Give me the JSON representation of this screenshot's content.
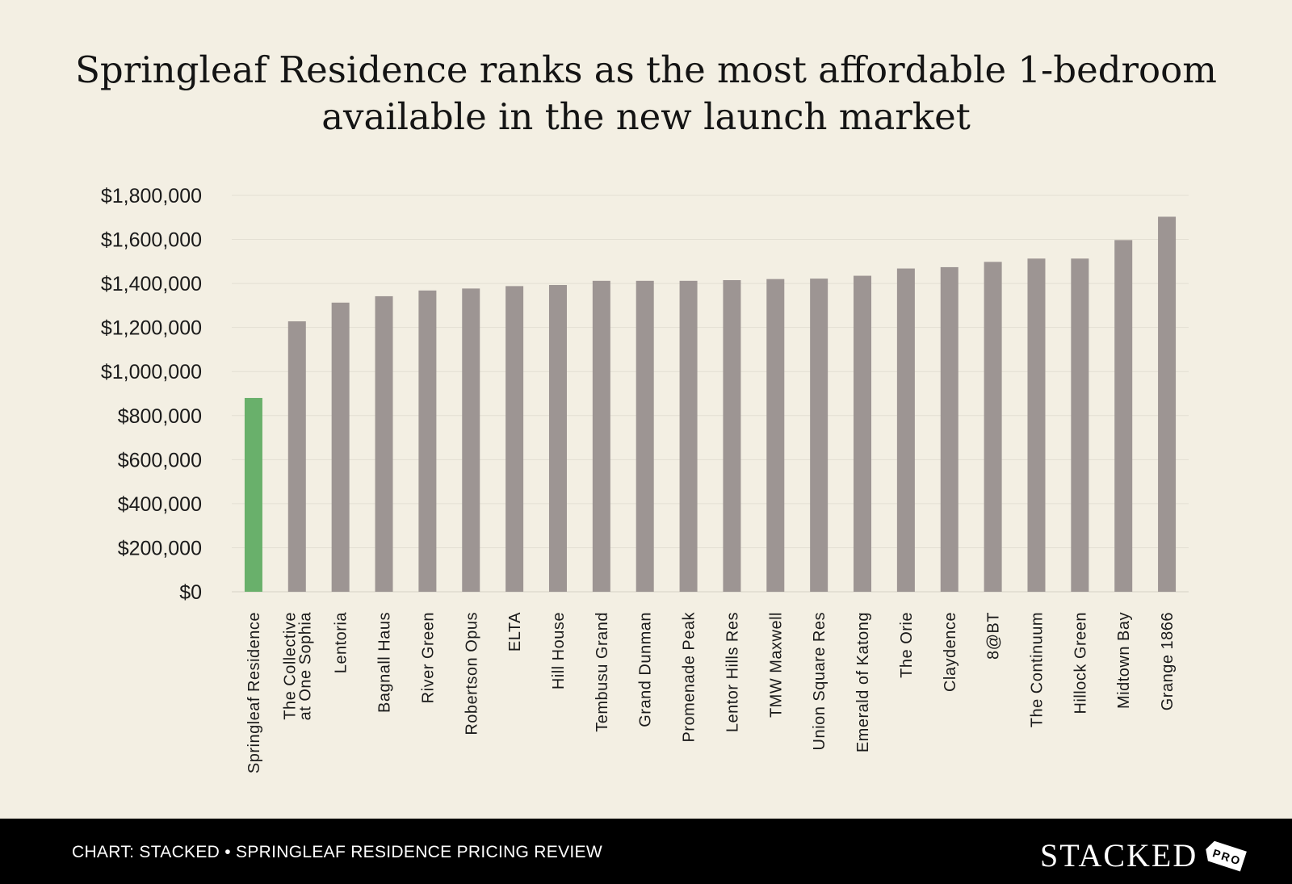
{
  "title": {
    "line1": "Springleaf Residence ranks as the most affordable 1-bedroom",
    "line2": "available in the new launch market"
  },
  "footer": {
    "credit": "CHART: STACKED • SPRINGLEAF RESIDENCE PRICING REVIEW",
    "logo_text": "STACKED",
    "logo_badge": "PRO"
  },
  "colors": {
    "highlight_bar": "#69b06b",
    "bar": "#9d9593",
    "background": "#f3efe3",
    "gridline": "#e3dfd3",
    "footer_background": "#000000"
  },
  "chart_data": {
    "type": "bar",
    "title": "Springleaf Residence ranks as the most affordable 1-bedroom available in the new launch market",
    "xlabel": "",
    "ylabel": "",
    "ylim": [
      0,
      1800000
    ],
    "yticks": [
      0,
      200000,
      400000,
      600000,
      800000,
      1000000,
      1200000,
      1400000,
      1600000,
      1800000
    ],
    "ytick_labels": [
      "$0",
      "$200,000",
      "$400,000",
      "$600,000",
      "$800,000",
      "$1,000,000",
      "$1,200,000",
      "$1,400,000",
      "$1,600,000",
      "$1,800,000"
    ],
    "grid": true,
    "legend": "none",
    "highlight_index": 0,
    "categories": [
      [
        "Springleaf Residence"
      ],
      [
        "The Collective",
        "at One Sophia"
      ],
      [
        "Lentoria"
      ],
      [
        "Bagnall Haus"
      ],
      [
        "River Green"
      ],
      [
        "Robertson Opus"
      ],
      [
        "ELTA"
      ],
      [
        "Hill House"
      ],
      [
        "Tembusu Grand"
      ],
      [
        "Grand Dunman"
      ],
      [
        "Promenade Peak"
      ],
      [
        "Lentor Hills Res"
      ],
      [
        "TMW Maxwell"
      ],
      [
        "Union Square Res"
      ],
      [
        "Emerald of Katong"
      ],
      [
        "The Orie"
      ],
      [
        "Claydence"
      ],
      [
        "8@BT"
      ],
      [
        "The Continuum"
      ],
      [
        "Hillock Green"
      ],
      [
        "Midtown Bay"
      ],
      [
        "Grange 1866"
      ]
    ],
    "values": [
      880000,
      1228000,
      1313000,
      1342000,
      1368000,
      1377000,
      1388000,
      1393000,
      1412000,
      1412000,
      1412000,
      1415000,
      1420000,
      1422000,
      1435000,
      1468000,
      1474000,
      1498000,
      1513000,
      1513000,
      1597000,
      1703000
    ]
  }
}
